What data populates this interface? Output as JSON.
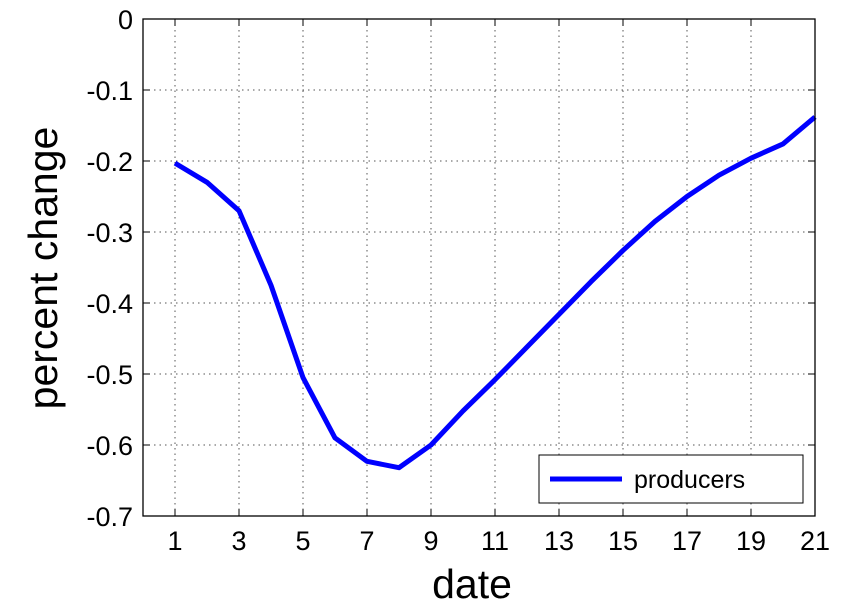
{
  "chart_data": {
    "type": "line",
    "title": "",
    "xlabel": "date",
    "ylabel": "percent change",
    "x": [
      1,
      2,
      3,
      4,
      5,
      6,
      7,
      8,
      9,
      10,
      11,
      12,
      13,
      14,
      15,
      16,
      17,
      18,
      19,
      20,
      21
    ],
    "series": [
      {
        "name": "producers",
        "color": "#0000ff",
        "values": [
          -0.203,
          -0.23,
          -0.27,
          -0.375,
          -0.505,
          -0.59,
          -0.623,
          -0.632,
          -0.6,
          -0.552,
          -0.508,
          -0.462,
          -0.416,
          -0.37,
          -0.326,
          -0.285,
          -0.25,
          -0.22,
          -0.196,
          -0.176,
          -0.138
        ]
      }
    ],
    "xlim": [
      0,
      21
    ],
    "ylim": [
      -0.7,
      0
    ],
    "xticks": [
      1,
      3,
      5,
      7,
      9,
      11,
      13,
      15,
      17,
      19,
      21
    ],
    "xtick_labels": [
      "1",
      "3",
      "5",
      "7",
      "9",
      "11",
      "13",
      "15",
      "17",
      "19",
      "21"
    ],
    "yticks": [
      0,
      -0.1,
      -0.2,
      -0.3,
      -0.4,
      -0.5,
      -0.6,
      -0.7
    ],
    "ytick_labels": [
      "0",
      "-0.1",
      "-0.2",
      "-0.3",
      "-0.4",
      "-0.5",
      "-0.6",
      "-0.7"
    ],
    "grid": true,
    "legend": "bottom-right"
  }
}
